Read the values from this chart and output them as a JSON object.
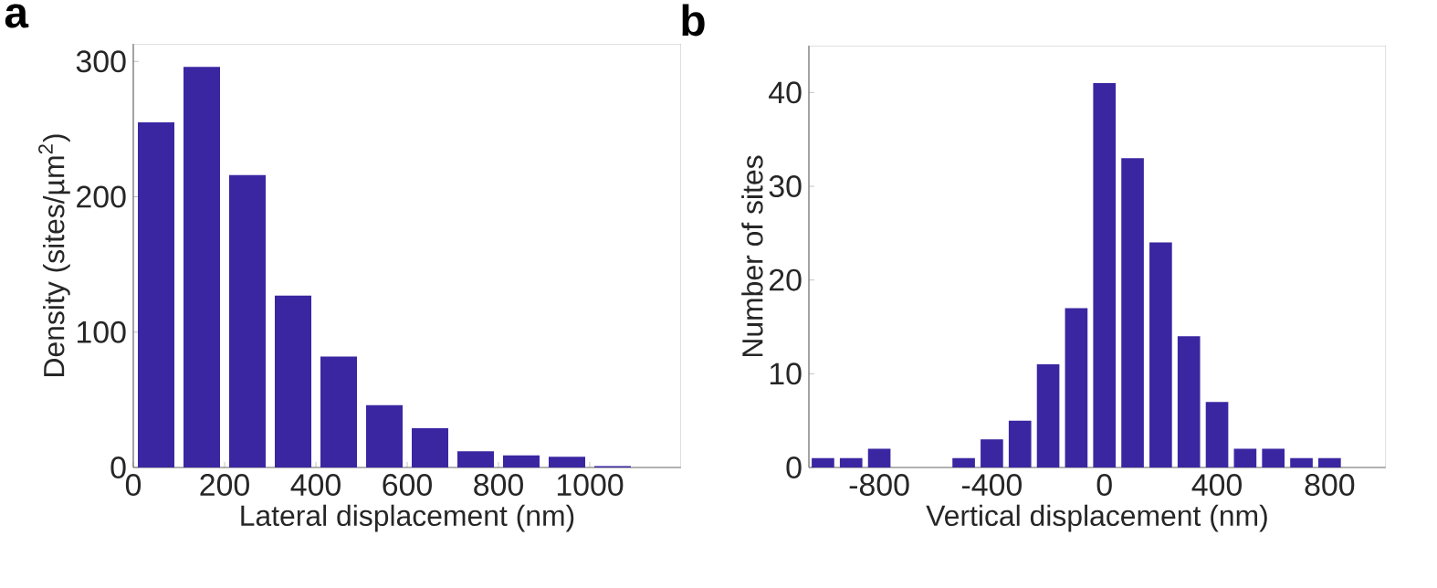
{
  "chart_data": [
    {
      "type": "histogram",
      "title": "a",
      "xlabel": "Lateral displacement (nm)",
      "ylabel": "Density (sites/µm$^{2}$)",
      "color": "#3b26a2",
      "bins": [
        0,
        100,
        200,
        300,
        400,
        500,
        600,
        700,
        800,
        900,
        1000,
        1100
      ],
      "values": [
        255,
        296,
        216,
        127,
        82,
        46,
        29,
        12,
        9,
        8,
        1
      ],
      "xlim": [
        0,
        1200
      ],
      "ylim": [
        0,
        313
      ],
      "xticks": [
        0,
        200,
        400,
        600,
        800,
        1000
      ],
      "yticks": [
        0,
        100,
        200,
        300
      ]
    },
    {
      "type": "histogram",
      "title": "b",
      "xlabel": "Vertical displacement (nm)",
      "ylabel": "Number of sites",
      "color": "#3b26a2",
      "bins": [
        -1050,
        -950,
        -850,
        -750,
        -650,
        -550,
        -450,
        -350,
        -250,
        -150,
        -50,
        50,
        150,
        250,
        350,
        450,
        550,
        650,
        750,
        850
      ],
      "values": [
        1,
        1,
        2,
        0,
        0,
        1,
        3,
        5,
        11,
        17,
        41,
        33,
        24,
        14,
        7,
        2,
        2,
        1,
        1
      ],
      "xlim": [
        -1050,
        1000
      ],
      "ylim": [
        0,
        45
      ],
      "xticks": [
        {
          "value": -800,
          "label": "-800"
        },
        {
          "value": -400,
          "label": "-400"
        },
        0,
        400,
        800
      ],
      "yticks": [
        0,
        10,
        20,
        30,
        40
      ]
    }
  ]
}
